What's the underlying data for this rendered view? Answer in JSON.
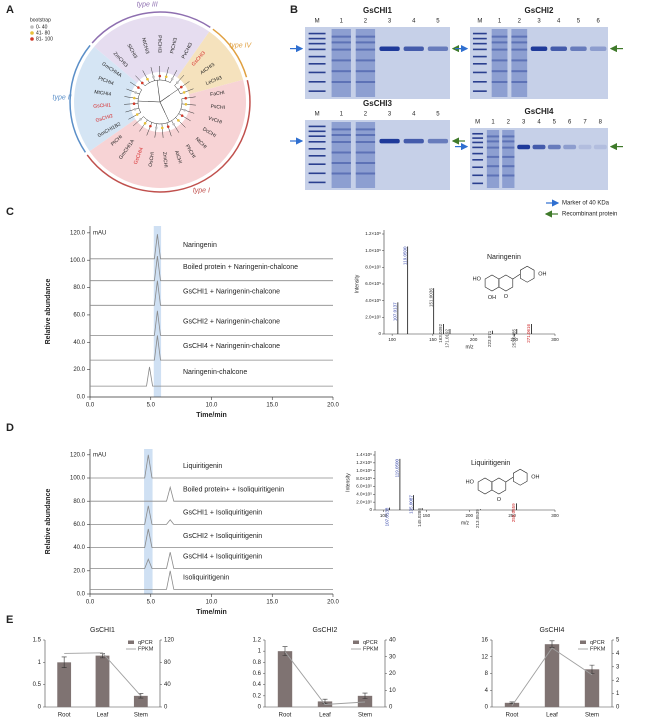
{
  "panel_labels": [
    "A",
    "B",
    "C",
    "D",
    "E"
  ],
  "tree": {
    "legend_title": "bootstrap",
    "legend": [
      {
        "label": "0- 40",
        "color": "#bdbdbd"
      },
      {
        "label": "41- 80",
        "color": "#e8c13a"
      },
      {
        "label": "81- 100",
        "color": "#d23a2a"
      }
    ],
    "clades": [
      {
        "name": "type III",
        "color": "#8e6fb0",
        "fill": "#e6ddf0",
        "leaves": [
          {
            "label": "PvCHI3",
            "color": "#222222"
          },
          {
            "label": "PtCHI3",
            "color": "#222222"
          },
          {
            "label": "PhCHI3",
            "color": "#222222"
          },
          {
            "label": "NtCHI3",
            "color": "#222222"
          },
          {
            "label": "SlCHI3",
            "color": "#222222"
          },
          {
            "label": "ZmCHI3",
            "color": "#222222"
          }
        ]
      },
      {
        "name": "type IV",
        "color": "#e0a040",
        "fill": "#f5e2bd",
        "leaves": [
          {
            "label": "LeCHI3",
            "color": "#222222"
          },
          {
            "label": "AtCHI3",
            "color": "#222222"
          },
          {
            "label": "GsCHI3",
            "color": "#d62728"
          }
        ]
      },
      {
        "name": "type II",
        "color": "#5b8fc8",
        "fill": "#d5e5f4",
        "leaves": [
          {
            "label": "GmCHI4A",
            "color": "#222222"
          },
          {
            "label": "PtCHI4",
            "color": "#222222"
          },
          {
            "label": "MtCHI4",
            "color": "#222222"
          },
          {
            "label": "GsCHI1",
            "color": "#d62728"
          },
          {
            "label": "GsCHI2",
            "color": "#d62728"
          },
          {
            "label": "GmCHI1B2",
            "color": "#222222"
          }
        ]
      },
      {
        "name": "type I",
        "color": "#c0504d",
        "fill": "#f7d3d5",
        "leaves": [
          {
            "label": "PtCHI",
            "color": "#222222"
          },
          {
            "label": "GmCHI1A",
            "color": "#222222"
          },
          {
            "label": "GsCHI4",
            "color": "#d62728"
          },
          {
            "label": "OsCHI",
            "color": "#222222"
          },
          {
            "label": "ZmCHI",
            "color": "#222222"
          },
          {
            "label": "AtCHI",
            "color": "#222222"
          },
          {
            "label": "PhCHI",
            "color": "#222222"
          },
          {
            "label": "NtCHI",
            "color": "#222222"
          },
          {
            "label": "DcCHI",
            "color": "#222222"
          },
          {
            "label": "VvCHI",
            "color": "#222222"
          },
          {
            "label": "PsCHI",
            "color": "#222222"
          },
          {
            "label": "FaCHI",
            "color": "#222222"
          }
        ]
      }
    ]
  },
  "gels": {
    "blots": [
      {
        "title": "GsCHI1",
        "lanes": [
          "M",
          "1",
          "2",
          "3",
          "4",
          "5"
        ]
      },
      {
        "title": "GsCHI2",
        "lanes": [
          "M",
          "1",
          "2",
          "3",
          "4",
          "5",
          "6"
        ]
      },
      {
        "title": "GsCHI3",
        "lanes": [
          "M",
          "1",
          "2",
          "3",
          "4",
          "5"
        ]
      },
      {
        "title": "GsCHI4",
        "lanes": [
          "M",
          "1",
          "2",
          "3",
          "4",
          "5",
          "6",
          "7",
          "8"
        ]
      }
    ],
    "legend": [
      "Marker of 40 KDa",
      "Recombinant protein"
    ]
  },
  "chart_data": [
    {
      "type": "line",
      "unit_label": "mAU",
      "ylabel": "Relative abundance",
      "xlabel": "Time/min",
      "xlim": [
        0,
        20
      ],
      "xticks": [
        {
          "value": 0,
          "label": "0.0"
        },
        {
          "value": 5,
          "label": "5.0"
        },
        {
          "value": 10,
          "label": "10.0"
        },
        {
          "value": 15,
          "label": "15.0"
        },
        {
          "value": 20,
          "label": "20.0"
        }
      ],
      "ylim": [
        0,
        125
      ],
      "yticks": [
        {
          "value": 0,
          "label": "0.0"
        },
        {
          "value": 20,
          "label": "20.0"
        },
        {
          "value": 40,
          "label": "40.0"
        },
        {
          "value": 60,
          "label": "60.0"
        },
        {
          "value": 80,
          "label": "80.0"
        },
        {
          "value": 100,
          "label": "100.0"
        },
        {
          "value": 120,
          "label": "120.0"
        }
      ],
      "highlight": [
        5.25,
        5.85
      ],
      "series": [
        {
          "name": "Naringenin",
          "color": "#8a8a8a",
          "x": [
            0,
            5.3,
            5.55,
            5.8,
            20
          ],
          "values": [
            101,
            101,
            119,
            101,
            101
          ]
        },
        {
          "name": "Boiled protein + Naringenin-chalcone",
          "color": "#8a8a8a",
          "x": [
            0,
            5.3,
            5.55,
            5.8,
            20
          ],
          "values": [
            85,
            85,
            103,
            85,
            85
          ]
        },
        {
          "name": "GsCHI1 + Naringenin-chalcone",
          "color": "#8a8a8a",
          "x": [
            0,
            5.3,
            5.55,
            5.8,
            20
          ],
          "values": [
            67,
            67,
            85,
            67,
            67
          ]
        },
        {
          "name": "GsCHI2 + Naringenin-chalcone",
          "color": "#8a8a8a",
          "x": [
            0,
            5.3,
            5.55,
            5.8,
            20
          ],
          "values": [
            45,
            45,
            63,
            45,
            45
          ]
        },
        {
          "name": "GsCHI4 + Naringenin-chalcone",
          "color": "#8a8a8a",
          "x": [
            0,
            5.3,
            5.55,
            5.8,
            20
          ],
          "values": [
            27,
            27,
            45,
            27,
            27
          ]
        },
        {
          "name": "Naringenin-chalcone",
          "color": "#8a8a8a",
          "x": [
            0,
            4.65,
            4.9,
            5.15,
            20
          ],
          "values": [
            8,
            8,
            22,
            8,
            8
          ]
        }
      ]
    },
    {
      "type": "spectrum",
      "title": "Naringenin",
      "xlabel": "m/z",
      "ylabel": "Intensity",
      "structure_labels": [
        "HO",
        "OH",
        "O",
        "OH"
      ],
      "xlim": [
        90,
        300
      ],
      "xticks": [
        100,
        150,
        200,
        250,
        300
      ],
      "ylim": [
        0,
        1200000
      ],
      "yticks": [
        0,
        {
          "value": 200000,
          "label": "2.0×10⁵"
        },
        {
          "value": 400000,
          "label": "4.0×10⁵"
        },
        {
          "value": 600000,
          "label": "6.0×10⁵"
        },
        {
          "value": 800000,
          "label": "8.0×10⁵"
        },
        {
          "value": 1000000,
          "label": "1.0×10⁶"
        },
        {
          "value": 1200000,
          "label": "1.2×10⁶"
        }
      ],
      "x": [
        107.0137,
        119.05,
        151.0036,
        163.0392,
        171.0192,
        223.071,
        253.0485,
        271.0616
      ],
      "x_labels": [
        "107.0137",
        "119.0500",
        "151.0036",
        "163.0392",
        "171.0192",
        "223.071",
        "253.0485",
        "271.0616"
      ],
      "label_colors": [
        "#3344aa",
        "#3344aa",
        "#333333",
        "#333333",
        "#333333",
        "#333333",
        "#333333",
        "#cc2222"
      ],
      "values": [
        380000,
        1050000,
        550000,
        120000,
        60000,
        40000,
        60000,
        120000
      ]
    },
    {
      "type": "line",
      "unit_label": "mAU",
      "ylabel": "Relative abundance",
      "xlabel": "Time/min",
      "xlim": [
        0,
        20
      ],
      "xticks": [
        {
          "value": 0,
          "label": "0.0"
        },
        {
          "value": 5,
          "label": "5.0"
        },
        {
          "value": 10,
          "label": "10.0"
        },
        {
          "value": 15,
          "label": "15.0"
        },
        {
          "value": 20,
          "label": "20.0"
        }
      ],
      "ylim": [
        0,
        125
      ],
      "yticks": [
        {
          "value": 0,
          "label": "0.0"
        },
        {
          "value": 20,
          "label": "20.0"
        },
        {
          "value": 40,
          "label": "40.0"
        },
        {
          "value": 60,
          "label": "60.0"
        },
        {
          "value": 80,
          "label": "80.0"
        },
        {
          "value": 100,
          "label": "100.0"
        },
        {
          "value": 120,
          "label": "120.0"
        }
      ],
      "highlight": [
        4.45,
        5.15
      ],
      "series": [
        {
          "name": "Liquiritigenin",
          "color": "#8a8a8a",
          "x": [
            0,
            4.5,
            4.8,
            5.1,
            20
          ],
          "values": [
            100,
            100,
            120,
            100,
            100
          ]
        },
        {
          "name": "Boiled protein+ + Isoliquiritigenin",
          "color": "#8a8a8a",
          "x": [
            0,
            6.3,
            6.6,
            6.9,
            20
          ],
          "values": [
            80,
            80,
            92,
            80,
            80
          ]
        },
        {
          "name": "GsCHI1 + Isoliquiritigenin",
          "color": "#8a8a8a",
          "x": [
            0,
            4.5,
            4.8,
            5.1,
            6.3,
            6.6,
            6.9,
            20
          ],
          "values": [
            60,
            60,
            76,
            60,
            60,
            64,
            60,
            60
          ]
        },
        {
          "name": "GsCHI2 + Isoliquiritigenin",
          "color": "#8a8a8a",
          "x": [
            0,
            4.5,
            4.8,
            5.1,
            20
          ],
          "values": [
            40,
            40,
            56,
            40,
            40
          ]
        },
        {
          "name": "GsCHI4 + Isoliquiritigenin",
          "color": "#8a8a8a",
          "x": [
            0,
            4.5,
            4.8,
            5.1,
            6.3,
            6.6,
            6.9,
            20
          ],
          "values": [
            22,
            22,
            30,
            22,
            22,
            36,
            22,
            22
          ]
        },
        {
          "name": "Isoliquiritigenin",
          "color": "#8a8a8a",
          "x": [
            0,
            6.3,
            6.6,
            6.9,
            20
          ],
          "values": [
            4,
            4,
            20,
            4,
            4
          ]
        }
      ]
    },
    {
      "type": "spectrum",
      "title": "Liquiritigenin",
      "xlabel": "m/z",
      "ylabel": "Intensity",
      "structure_labels": [
        "HO",
        "OH",
        "O"
      ],
      "xlim": [
        90,
        300
      ],
      "xticks": [
        100,
        150,
        200,
        250,
        300
      ],
      "ylim": [
        0,
        1400000
      ],
      "yticks": [
        0,
        {
          "value": 200000,
          "label": "2.0×10⁵"
        },
        {
          "value": 400000,
          "label": "4.0×10⁵"
        },
        {
          "value": 600000,
          "label": "6.0×10⁵"
        },
        {
          "value": 800000,
          "label": "8.0×10⁵"
        },
        {
          "value": 1000000,
          "label": "1.0×10⁶"
        },
        {
          "value": 1200000,
          "label": "1.2×10⁶"
        },
        {
          "value": 1400000,
          "label": "1.4×10⁶"
        }
      ],
      "x": [
        107.0138,
        119.05,
        135.0087,
        145.0286,
        213.0539,
        255.0659
      ],
      "x_labels": [
        "107.0138",
        "119.0500",
        "135.0087",
        "145.0286",
        "213.0539",
        "255.0659"
      ],
      "label_colors": [
        "#3344aa",
        "#3344aa",
        "#3344aa",
        "#333333",
        "#333333",
        "#cc2222"
      ],
      "values": [
        60000,
        1300000,
        380000,
        50000,
        20000,
        170000
      ]
    },
    {
      "type": "bar",
      "title": "GsCHI1",
      "categories": [
        "Root",
        "Leaf",
        "Stem"
      ],
      "ylim": [
        0,
        1.5
      ],
      "yticks": [
        0,
        0.5,
        1,
        1.5
      ],
      "y2lim": [
        0,
        120
      ],
      "y2ticks": [
        0,
        40,
        80,
        120
      ],
      "series": [
        {
          "name": "qPCR",
          "color": "#7f7372",
          "values": [
            1.0,
            1.15,
            0.25
          ],
          "errors": [
            0.12,
            0.05,
            0.05
          ]
        },
        {
          "name": "FPKM",
          "color": "#a0a0a0",
          "type": "line",
          "axis": "y2",
          "values": [
            96,
            97,
            20
          ]
        }
      ]
    },
    {
      "type": "bar",
      "title": "GsCHI2",
      "categories": [
        "Root",
        "Leaf",
        "Stem"
      ],
      "ylim": [
        0,
        1.2
      ],
      "yticks": [
        0,
        0.2,
        0.4,
        0.6,
        0.8,
        1,
        1.2
      ],
      "y2lim": [
        0,
        40
      ],
      "y2ticks": [
        0,
        10,
        20,
        30,
        40
      ],
      "series": [
        {
          "name": "qPCR",
          "color": "#7f7372",
          "values": [
            1.0,
            0.1,
            0.2
          ],
          "errors": [
            0.08,
            0.04,
            0.05
          ]
        },
        {
          "name": "FPKM",
          "color": "#a0a0a0",
          "type": "line",
          "axis": "y2",
          "values": [
            33,
            1.5,
            3
          ]
        }
      ]
    },
    {
      "type": "bar",
      "title": "GsCHI4",
      "categories": [
        "Root",
        "Leaf",
        "Stem"
      ],
      "ylim": [
        0,
        16
      ],
      "yticks": [
        0,
        4,
        8,
        12,
        16
      ],
      "y2lim": [
        0,
        5
      ],
      "y2ticks": [
        0,
        1,
        2,
        3,
        4,
        5
      ],
      "series": [
        {
          "name": "qPCR",
          "color": "#7f7372",
          "values": [
            1,
            15,
            9
          ],
          "errors": [
            0.2,
            0.8,
            1
          ]
        },
        {
          "name": "FPKM",
          "color": "#a0a0a0",
          "type": "line",
          "axis": "y2",
          "values": [
            0.1,
            4.4,
            2.4
          ]
        }
      ]
    }
  ]
}
